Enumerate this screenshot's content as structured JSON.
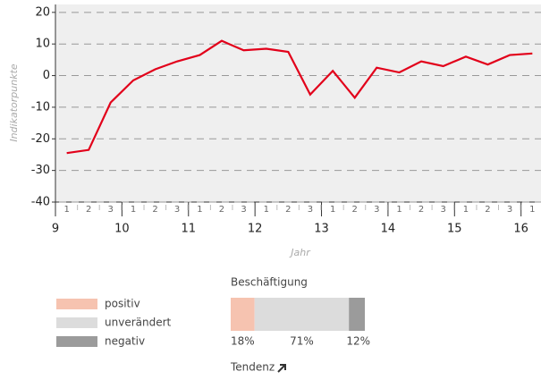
{
  "chart_data": [
    {
      "type": "line",
      "xlabel": "Jahr",
      "ylabel": "Indikatorpunkte",
      "x": [
        9.17,
        9.5,
        9.83,
        10.17,
        10.5,
        10.83,
        11.17,
        11.5,
        11.83,
        12.17,
        12.5,
        12.83,
        13.17,
        13.5,
        13.83,
        14.17,
        14.5,
        14.83,
        15.17,
        15.5,
        15.83,
        16.17
      ],
      "x_sublabels": [
        "1",
        "2",
        "3",
        "1",
        "2",
        "3",
        "1",
        "2",
        "3",
        "1",
        "2",
        "3",
        "1",
        "2",
        "3",
        "1",
        "2",
        "3",
        "1",
        "2",
        "3",
        "1"
      ],
      "series": [
        {
          "color": "#e2001a",
          "values": [
            -24.5,
            -23.5,
            -8.5,
            -1.5,
            2,
            4.5,
            6.5,
            11,
            8,
            8.5,
            7.5,
            -6,
            1.5,
            -7,
            2.5,
            1,
            4.5,
            3,
            6,
            3.5,
            6.5,
            7
          ]
        }
      ],
      "xlim": [
        9,
        16.3
      ],
      "xticks": [
        9,
        10,
        11,
        12,
        13,
        14,
        15,
        16
      ],
      "ylim": [
        -40,
        22.5
      ],
      "yticks": [
        -40,
        -30,
        -20,
        -10,
        0,
        10,
        20
      ],
      "grid": true
    },
    {
      "type": "stacked_bar",
      "title": "Beschäftigung",
      "footer": "Tendenz",
      "series": [
        {
          "name": "positiv",
          "color": "#f6c3b0",
          "values": [
            18
          ],
          "value_labels": [
            "18%"
          ]
        },
        {
          "name": "unverändert",
          "color": "#dcdcdc",
          "values": [
            71
          ],
          "value_labels": [
            "71%"
          ]
        },
        {
          "name": "negativ",
          "color": "#9b9b9b",
          "values": [
            12
          ],
          "value_labels": [
            "12%"
          ]
        }
      ],
      "xlim": [
        0,
        101
      ]
    }
  ]
}
